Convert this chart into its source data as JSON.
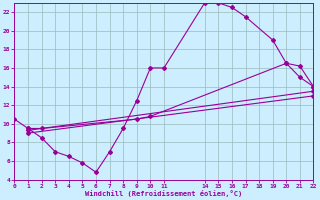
{
  "xlabel": "Windchill (Refroidissement éolien,°C)",
  "bg_color": "#cceeff",
  "line_color": "#990099",
  "grid_color": "#99bbbb",
  "xlim": [
    0,
    22
  ],
  "ylim": [
    4,
    23
  ],
  "xticks": [
    0,
    1,
    2,
    3,
    4,
    5,
    6,
    7,
    8,
    9,
    10,
    11,
    14,
    15,
    16,
    17,
    18,
    19,
    20,
    21,
    22
  ],
  "yticks": [
    4,
    6,
    8,
    10,
    12,
    14,
    16,
    18,
    20,
    22
  ],
  "curve1_x": [
    0,
    1,
    2,
    3,
    4,
    5,
    6,
    7,
    8,
    9,
    10,
    11,
    14,
    15,
    16,
    17,
    19,
    20,
    21,
    22
  ],
  "curve1_y": [
    10.5,
    9.5,
    8.5,
    7.0,
    6.5,
    5.8,
    4.8,
    7.0,
    9.5,
    12.5,
    16.0,
    16.0,
    23.0,
    23.0,
    22.5,
    21.5,
    19.0,
    16.5,
    15.0,
    14.0
  ],
  "curve2_x": [
    1,
    2,
    9,
    10,
    20,
    21,
    22
  ],
  "curve2_y": [
    9.5,
    9.5,
    10.5,
    10.8,
    16.5,
    16.2,
    14.0
  ],
  "curve3_x": [
    1,
    22
  ],
  "curve3_y": [
    9.3,
    13.5
  ],
  "curve4_x": [
    1,
    22
  ],
  "curve4_y": [
    9.0,
    13.0
  ]
}
